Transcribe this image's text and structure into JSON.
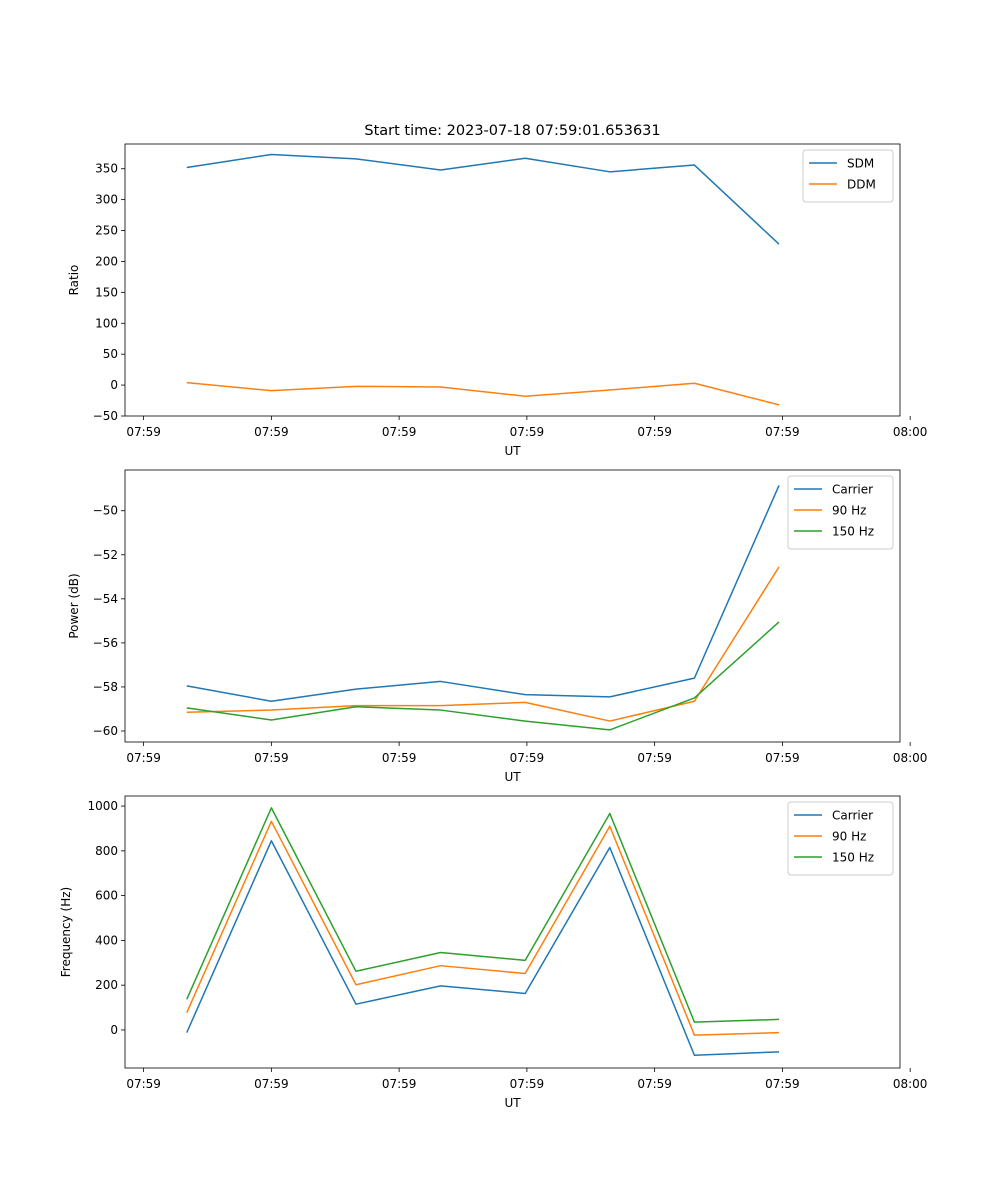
{
  "figure_title": "Start time: 2023-07-18 07:59:01.653631",
  "chart_data": [
    {
      "type": "line",
      "title": "Start time: 2023-07-18 07:59:01.653631",
      "xlabel": "UT",
      "ylabel": "Ratio",
      "x": [
        1,
        2,
        3,
        4,
        5,
        6,
        7,
        8
      ],
      "xlim": [
        0.27,
        9.43
      ],
      "xticks": [
        0.49,
        2.0,
        3.51,
        5.02,
        6.53,
        8.04,
        9.55
      ],
      "xtick_labels": [
        "07:59",
        "07:59",
        "07:59",
        "07:59",
        "07:59",
        "07:59",
        "08:00"
      ],
      "ylim": [
        -50,
        390
      ],
      "yticks": [
        -50,
        0,
        50,
        100,
        150,
        200,
        250,
        300,
        350
      ],
      "ytick_labels": [
        "−50",
        "0",
        "50",
        "100",
        "150",
        "200",
        "250",
        "300",
        "350"
      ],
      "legend": "top-right",
      "series": [
        {
          "name": "SDM",
          "color": "#1f77b4",
          "values": [
            352,
            373,
            366,
            348,
            367,
            345,
            356,
            228
          ]
        },
        {
          "name": "DDM",
          "color": "#ff7f0e",
          "values": [
            4,
            -9,
            -2,
            -3,
            -18,
            -8,
            3,
            -32
          ]
        }
      ]
    },
    {
      "type": "line",
      "title": "",
      "xlabel": "UT",
      "ylabel": "Power (dB)",
      "x": [
        1,
        2,
        3,
        4,
        5,
        6,
        7,
        8
      ],
      "xlim": [
        0.27,
        9.43
      ],
      "xticks": [
        0.49,
        2.0,
        3.51,
        5.02,
        6.53,
        8.04,
        9.55
      ],
      "xtick_labels": [
        "07:59",
        "07:59",
        "07:59",
        "07:59",
        "07:59",
        "07:59",
        "08:00"
      ],
      "ylim": [
        -60.5,
        -48.15
      ],
      "yticks": [
        -60,
        -58,
        -56,
        -54,
        -52,
        -50
      ],
      "ytick_labels": [
        "−60",
        "−58",
        "−56",
        "−54",
        "−52",
        "−50"
      ],
      "legend": "top-right",
      "series": [
        {
          "name": "Carrier",
          "color": "#1f77b4",
          "values": [
            -57.95,
            -58.65,
            -58.1,
            -57.75,
            -58.35,
            -58.45,
            -57.6,
            -48.85
          ]
        },
        {
          "name": "90 Hz",
          "color": "#ff7f0e",
          "values": [
            -59.15,
            -59.05,
            -58.85,
            -58.85,
            -58.7,
            -59.55,
            -58.65,
            -52.55
          ]
        },
        {
          "name": "150 Hz",
          "color": "#2ca02c",
          "values": [
            -58.95,
            -59.5,
            -58.9,
            -59.05,
            -59.55,
            -59.95,
            -58.5,
            -55.05
          ]
        }
      ]
    },
    {
      "type": "line",
      "title": "",
      "xlabel": "UT",
      "ylabel": "Frequency (Hz)",
      "x": [
        1,
        2,
        3,
        4,
        5,
        6,
        7,
        8
      ],
      "xlim": [
        0.27,
        9.43
      ],
      "xticks": [
        0.49,
        2.0,
        3.51,
        5.02,
        6.53,
        8.04,
        9.55
      ],
      "xtick_labels": [
        "07:59",
        "07:59",
        "07:59",
        "07:59",
        "07:59",
        "07:59",
        "08:00"
      ],
      "ylim": [
        -170,
        1045
      ],
      "yticks": [
        0,
        200,
        400,
        600,
        800,
        1000
      ],
      "ytick_labels": [
        "0",
        "200",
        "400",
        "600",
        "800",
        "1000"
      ],
      "legend": "top-right",
      "series": [
        {
          "name": "Carrier",
          "color": "#1f77b4",
          "values": [
            -12,
            845,
            115,
            197,
            163,
            815,
            -113,
            -98
          ]
        },
        {
          "name": "90 Hz",
          "color": "#ff7f0e",
          "values": [
            77,
            932,
            202,
            287,
            252,
            910,
            -23,
            -12
          ]
        },
        {
          "name": "150 Hz",
          "color": "#2ca02c",
          "values": [
            137,
            992,
            262,
            346,
            311,
            967,
            35,
            47
          ]
        }
      ]
    }
  ]
}
